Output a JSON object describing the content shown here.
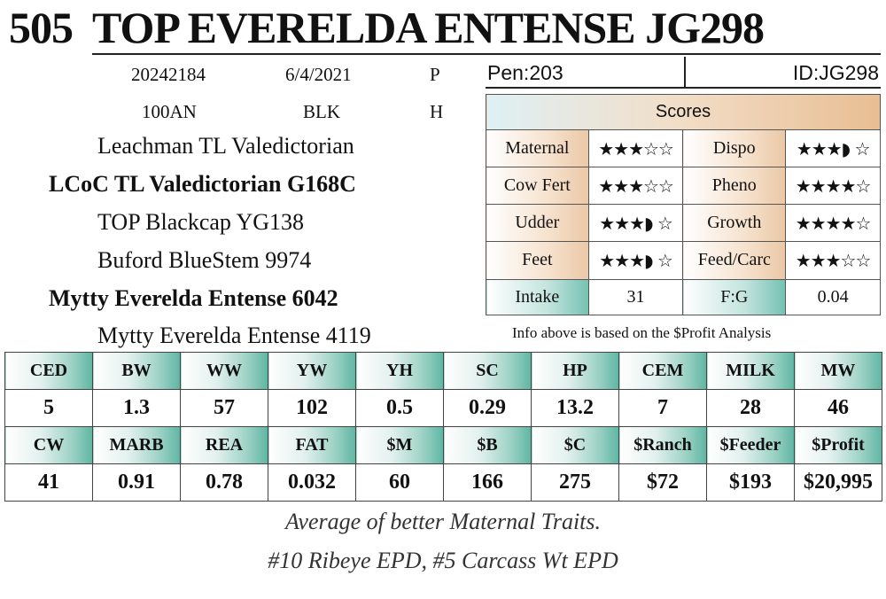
{
  "header": {
    "lot": "505",
    "name": "TOP EVERELDA ENTENSE JG298"
  },
  "info": {
    "row1": [
      "20242184",
      "6/4/2021",
      "P"
    ],
    "row2": [
      "100AN",
      "BLK",
      "H"
    ]
  },
  "pedigree": [
    "Leachman TL Valedictorian",
    "LCoC TL Valedictorian G168C",
    "TOP Blackcap YG138",
    "Buford BlueStem 9974",
    "Mytty Everelda Entense 6042",
    "Mytty Everelda Entense 4119"
  ],
  "pen": "Pen:203",
  "id": "ID:JG298",
  "scores": {
    "title": "Scores",
    "rows": [
      {
        "l1": "Maternal",
        "s1": "★★★☆☆",
        "r1": 3,
        "l2": "Dispo",
        "s2": "★★★◗ ☆",
        "r2": 3.5
      },
      {
        "l1": "Cow Fert",
        "s1": "★★★☆☆",
        "r1": 3,
        "l2": "Pheno",
        "s2": "★★★★☆",
        "r2": 4
      },
      {
        "l1": "Udder",
        "s1": "★★★◗ ☆",
        "r1": 3.5,
        "l2": "Growth",
        "s2": "★★★★☆",
        "r2": 4
      },
      {
        "l1": "Feet",
        "s1": "★★★◗ ☆",
        "r1": 3.5,
        "l2": "Feed/Carc",
        "s2": "★★★☆☆",
        "r2": 3
      }
    ],
    "intake_label": "Intake",
    "intake": "31",
    "fg_label": "F:G",
    "fg": "0.04"
  },
  "note": "Info above is based on the $Profit Analysis",
  "epd": {
    "headers1": [
      "CED",
      "BW",
      "WW",
      "YW",
      "YH",
      "SC",
      "HP",
      "CEM",
      "MILK",
      "MW"
    ],
    "values1": [
      "5",
      "1.3",
      "57",
      "102",
      "0.5",
      "0.29",
      "13.2",
      "7",
      "28",
      "46"
    ],
    "headers2": [
      "CW",
      "MARB",
      "REA",
      "FAT",
      "$M",
      "$B",
      "$C",
      "$Ranch",
      "$Feeder",
      "$Profit"
    ],
    "values2": [
      "41",
      "0.91",
      "0.78",
      "0.032",
      "60",
      "166",
      "275",
      "$72",
      "$193",
      "$20,995"
    ]
  },
  "comments": [
    "Average of better Maternal Traits.",
    "#10 Ribeye EPD, #5 Carcass Wt EPD"
  ]
}
